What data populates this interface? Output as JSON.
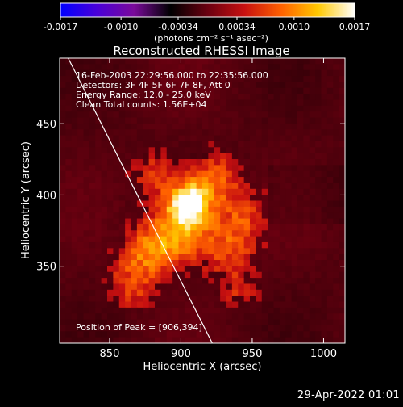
{
  "window": {
    "date_stamp": "29-Apr-2022 01:01"
  },
  "colorbar": {
    "ticks": [
      "-0.0017",
      "-0.0010",
      "-0.00034",
      "0.00034",
      "0.0010",
      "0.0017"
    ],
    "units_line": "(photons cm⁻² s⁻¹ asec⁻²)",
    "min": -0.0017,
    "max": 0.0017,
    "stops": [
      "#0000ff",
      "#4a00d8",
      "#7a0a9a",
      "#000000",
      "#6a0010",
      "#c81010",
      "#ff6000",
      "#ffc800",
      "#ffffff"
    ]
  },
  "chart_data": {
    "type": "heatmap",
    "title": "Reconstructed RHESSI Image",
    "xlabel": "Heliocentric X (arcsec)",
    "ylabel": "Heliocentric Y (arcsec)",
    "xlim": [
      815,
      1015
    ],
    "ylim": [
      296,
      496
    ],
    "xticks": [
      "850",
      "900",
      "950",
      "1000"
    ],
    "xtick_values": [
      850,
      900,
      950,
      1000
    ],
    "yticks": [
      "350",
      "400",
      "450"
    ],
    "ytick_values": [
      350,
      400,
      450
    ],
    "annotations": [
      "16-Feb-2003 22:29:56.000 to 22:35:56.000",
      "Detectors: 3F 4F 5F 6F 7F 8F, Att 0",
      "Energy Range: 12.0 - 25.0 keV",
      "Clean     Total counts: 1.56E+04"
    ],
    "peak_label": "Position of Peak = [906,394]",
    "peak": [
      906,
      394
    ],
    "limb_line": [
      [
        820,
        498
      ],
      [
        922,
        296
      ]
    ]
  }
}
